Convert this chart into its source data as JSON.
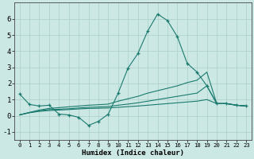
{
  "xlabel": "Humidex (Indice chaleur)",
  "x_values": [
    0,
    1,
    2,
    3,
    4,
    5,
    6,
    7,
    8,
    9,
    10,
    11,
    12,
    13,
    14,
    15,
    16,
    17,
    18,
    19,
    20,
    21,
    22,
    23
  ],
  "line1": [
    1.35,
    0.7,
    0.6,
    0.65,
    0.1,
    0.05,
    -0.1,
    -0.6,
    -0.35,
    0.1,
    1.4,
    2.95,
    3.85,
    5.25,
    6.3,
    5.9,
    4.9,
    3.25,
    2.7,
    1.85,
    0.75,
    0.75,
    0.65,
    0.6
  ],
  "line2": [
    0.05,
    0.2,
    0.35,
    0.45,
    0.5,
    0.55,
    0.6,
    0.65,
    0.68,
    0.72,
    0.9,
    1.05,
    1.2,
    1.4,
    1.55,
    1.7,
    1.85,
    2.05,
    2.2,
    2.7,
    0.75,
    0.75,
    0.65,
    0.6
  ],
  "line3": [
    0.05,
    0.2,
    0.3,
    0.38,
    0.4,
    0.43,
    0.48,
    0.52,
    0.54,
    0.57,
    0.65,
    0.72,
    0.8,
    0.9,
    1.0,
    1.1,
    1.2,
    1.3,
    1.4,
    1.85,
    0.75,
    0.75,
    0.65,
    0.6
  ],
  "line4": [
    0.05,
    0.18,
    0.27,
    0.32,
    0.35,
    0.38,
    0.42,
    0.45,
    0.46,
    0.48,
    0.52,
    0.56,
    0.6,
    0.65,
    0.7,
    0.75,
    0.8,
    0.85,
    0.9,
    1.0,
    0.75,
    0.75,
    0.65,
    0.6
  ],
  "line_color": "#1a7a6e",
  "bg_color": "#cce8e4",
  "grid_color": "#aacfca",
  "ylim": [
    -1.5,
    7.0
  ],
  "xlim": [
    -0.5,
    23.5
  ],
  "yticks": [
    -1,
    0,
    1,
    2,
    3,
    4,
    5,
    6
  ],
  "xticks": [
    0,
    1,
    2,
    3,
    4,
    5,
    6,
    7,
    8,
    9,
    10,
    11,
    12,
    13,
    14,
    15,
    16,
    17,
    18,
    19,
    20,
    21,
    22,
    23
  ]
}
